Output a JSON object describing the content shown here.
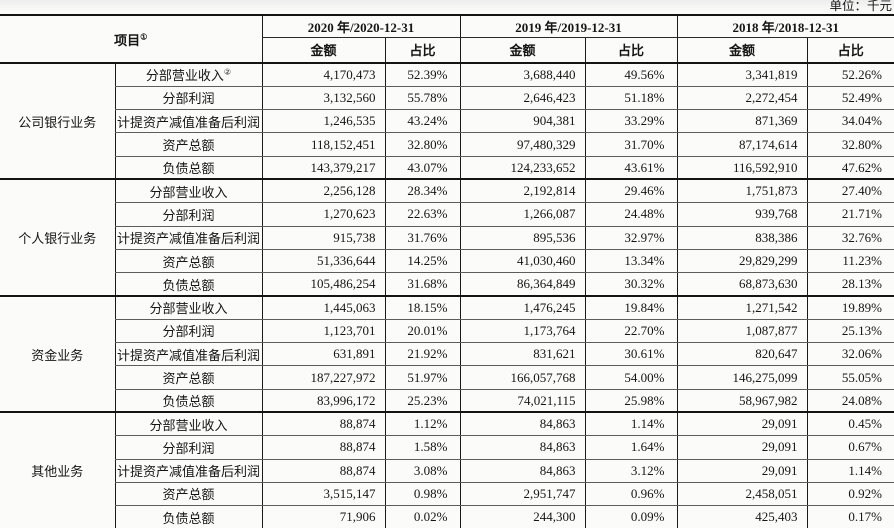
{
  "unit_label": "单位：千元",
  "table": {
    "item_header": "项目",
    "item_header_sup": "①",
    "amount_label": "金额",
    "ratio_label": "占比",
    "year_headers": [
      "2020 年/2020-12-31",
      "2019 年/2019-12-31",
      "2018 年/2018-12-31"
    ],
    "groups": [
      {
        "name": "公司银行业务",
        "rows": [
          {
            "label": "分部营业收入",
            "sup": "②",
            "values": [
              "4,170,473",
              "52.39%",
              "3,688,440",
              "49.56%",
              "3,341,819",
              "52.26%"
            ]
          },
          {
            "label": "分部利润",
            "values": [
              "3,132,560",
              "55.78%",
              "2,646,423",
              "51.18%",
              "2,272,454",
              "52.49%"
            ]
          },
          {
            "label": "计提资产减值准备后利润",
            "values": [
              "1,246,535",
              "43.24%",
              "904,381",
              "33.29%",
              "871,369",
              "34.04%"
            ]
          },
          {
            "label": "资产总额",
            "values": [
              "118,152,451",
              "32.80%",
              "97,480,329",
              "31.70%",
              "87,174,614",
              "32.80%"
            ]
          },
          {
            "label": "负债总额",
            "values": [
              "143,379,217",
              "43.07%",
              "124,233,652",
              "43.61%",
              "116,592,910",
              "47.62%"
            ]
          }
        ]
      },
      {
        "name": "个人银行业务",
        "rows": [
          {
            "label": "分部营业收入",
            "values": [
              "2,256,128",
              "28.34%",
              "2,192,814",
              "29.46%",
              "1,751,873",
              "27.40%"
            ]
          },
          {
            "label": "分部利润",
            "values": [
              "1,270,623",
              "22.63%",
              "1,266,087",
              "24.48%",
              "939,768",
              "21.71%"
            ]
          },
          {
            "label": "计提资产减值准备后利润",
            "values": [
              "915,738",
              "31.76%",
              "895,536",
              "32.97%",
              "838,386",
              "32.76%"
            ]
          },
          {
            "label": "资产总额",
            "values": [
              "51,336,644",
              "14.25%",
              "41,030,460",
              "13.34%",
              "29,829,299",
              "11.23%"
            ]
          },
          {
            "label": "负债总额",
            "values": [
              "105,486,254",
              "31.68%",
              "86,364,849",
              "30.32%",
              "68,873,630",
              "28.13%"
            ]
          }
        ]
      },
      {
        "name": "资金业务",
        "rows": [
          {
            "label": "分部营业收入",
            "values": [
              "1,445,063",
              "18.15%",
              "1,476,245",
              "19.84%",
              "1,271,542",
              "19.89%"
            ]
          },
          {
            "label": "分部利润",
            "values": [
              "1,123,701",
              "20.01%",
              "1,173,764",
              "22.70%",
              "1,087,877",
              "25.13%"
            ]
          },
          {
            "label": "计提资产减值准备后利润",
            "values": [
              "631,891",
              "21.92%",
              "831,621",
              "30.61%",
              "820,647",
              "32.06%"
            ]
          },
          {
            "label": "资产总额",
            "values": [
              "187,227,972",
              "51.97%",
              "166,057,768",
              "54.00%",
              "146,275,099",
              "55.05%"
            ]
          },
          {
            "label": "负债总额",
            "values": [
              "83,996,172",
              "25.23%",
              "74,021,115",
              "25.98%",
              "58,967,982",
              "24.08%"
            ]
          }
        ]
      },
      {
        "name": "其他业务",
        "rows": [
          {
            "label": "分部营业收入",
            "values": [
              "88,874",
              "1.12%",
              "84,863",
              "1.14%",
              "29,091",
              "0.45%"
            ]
          },
          {
            "label": "分部利润",
            "values": [
              "88,874",
              "1.58%",
              "84,863",
              "1.64%",
              "29,091",
              "0.67%"
            ]
          },
          {
            "label": "计提资产减值准备后利润",
            "values": [
              "88,874",
              "3.08%",
              "84,863",
              "3.12%",
              "29,091",
              "1.14%"
            ]
          },
          {
            "label": "资产总额",
            "values": [
              "3,515,147",
              "0.98%",
              "2,951,747",
              "0.96%",
              "2,458,051",
              "0.92%"
            ]
          },
          {
            "label": "负债总额",
            "values": [
              "71,906",
              "0.02%",
              "244,300",
              "0.09%",
              "425,403",
              "0.17%"
            ]
          }
        ]
      }
    ]
  }
}
